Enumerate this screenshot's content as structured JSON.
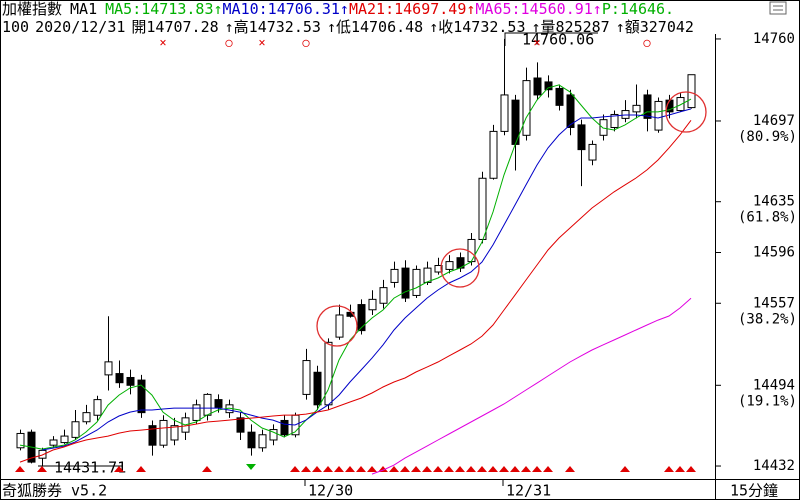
{
  "header": {
    "title": "加權指數",
    "mode": "MA1",
    "extra": {
      "text": "P:14646.",
      "color": "#00b000"
    },
    "info": [
      "100",
      "2020/12/31",
      "開14707.28",
      "↑高14732.53",
      "↑低14706.48",
      "↑收14732.53",
      "↑量825287",
      "↑額327042"
    ]
  },
  "footer": {
    "brand": "奇狐勝券 v5.2",
    "period": "15分鐘"
  },
  "chart_data": {
    "type": "candlestick",
    "categories": [
      null,
      null,
      null,
      null,
      null,
      null,
      null,
      null,
      null,
      null,
      null,
      null,
      null,
      null,
      null,
      null,
      null,
      null,
      null,
      null,
      null,
      null,
      null,
      null,
      null,
      null,
      "12/30",
      null,
      null,
      null,
      null,
      null,
      null,
      null,
      null,
      null,
      null,
      null,
      null,
      null,
      null,
      null,
      null,
      null,
      "12/31",
      null,
      null,
      null,
      null,
      null,
      null,
      null,
      null,
      null,
      null,
      null,
      null,
      null,
      null,
      null,
      null,
      null
    ],
    "open": [
      14446,
      14458,
      14438,
      14448,
      14450,
      14454,
      14466,
      14471,
      14502,
      14503,
      14500,
      14498,
      14463,
      14448,
      14452,
      14458,
      14467,
      14471,
      14483,
      14473,
      14469,
      14458,
      14446,
      14452,
      14467,
      14456,
      14487,
      14504,
      14479,
      14531,
      14550,
      14556,
      14552,
      14557,
      14573,
      14584,
      14563,
      14573,
      14581,
      14583,
      14592,
      14589,
      14606,
      14653,
      14689,
      14713,
      14686,
      14730,
      14727,
      14722,
      14717,
      14694,
      14667,
      14686,
      14692,
      14699,
      14704,
      14717,
      14690,
      14713,
      14705,
      14707.28
    ],
    "high": [
      14460,
      14460,
      14446,
      14455,
      14460,
      14475,
      14479,
      14486,
      14547,
      14513,
      14506,
      14502,
      14467,
      14471,
      14469,
      14473,
      14483,
      14488,
      14487,
      14483,
      14473,
      14464,
      14460,
      14464,
      14471,
      14473,
      14522,
      14509,
      14530,
      14556,
      14556,
      14560,
      14567,
      14575,
      14589,
      14590,
      14586,
      14589,
      14592,
      14594,
      14596,
      14611,
      14658,
      14694,
      14760.06,
      14717,
      14738,
      14742,
      14732,
      14725,
      14721,
      14698,
      14682,
      14702,
      14705,
      14713,
      14725,
      14721,
      14715,
      14717,
      14719,
      14732.53
    ],
    "low": [
      14444,
      14434,
      14431.71,
      14446,
      14449,
      14452,
      14464,
      14467,
      14490,
      14492,
      14487,
      14469,
      14440,
      14446,
      14448,
      14452,
      14464,
      14467,
      14473,
      14469,
      14452,
      14440,
      14443,
      14448,
      14454,
      14454,
      14483,
      14475,
      14475,
      14529,
      14546,
      14533,
      14548,
      14553,
      14569,
      14558,
      14561,
      14571,
      14579,
      14580,
      14581,
      14586,
      14603,
      14652,
      14686,
      14659,
      14682,
      14713,
      14715,
      14705,
      14686,
      14647,
      14663,
      14682,
      14689,
      14696,
      14699,
      14689,
      14688,
      14699,
      14704,
      14706.48
    ],
    "close": [
      14457,
      14435,
      14444,
      14452,
      14455,
      14466,
      14473,
      14483,
      14512,
      14496,
      14494,
      14473,
      14448,
      14467,
      14463,
      14469,
      14479,
      14487,
      14477,
      14479,
      14458,
      14446,
      14456,
      14460,
      14456,
      14471,
      14513,
      14479,
      14527,
      14548,
      14547,
      14536,
      14560,
      14569,
      14583,
      14561,
      14583,
      14584,
      14586,
      14589,
      14584,
      14606,
      14653,
      14689,
      14717,
      14679,
      14728,
      14717,
      14721,
      14709,
      14692,
      14675,
      14679,
      14698,
      14702,
      14705,
      14709,
      14699,
      14712,
      14704,
      14715,
      14732.53
    ],
    "up_color": "#ffffff",
    "down_color": "#000000",
    "series": [
      {
        "name": "MA5",
        "legend_text": ":14713.83↑",
        "color": "#00b000",
        "values": [
          14448.1,
          14446.6,
          14445.0,
          14446.6,
          14448.1,
          14452.0,
          14458.1,
          14465.8,
          14478.8,
          14486.5,
          14491.9,
          14494.2,
          14486.5,
          14473.4,
          14467.3,
          14463.5,
          14465.8,
          14471.1,
          14475.0,
          14476.5,
          14475.0,
          14467.3,
          14461.2,
          14458.1,
          14454.3,
          14458.1,
          14467.3,
          14475.0,
          14490.4,
          14513.4,
          14528.8,
          14538.0,
          14545.7,
          14551.8,
          14561.0,
          14565.7,
          14568.7,
          14573.3,
          14576.4,
          14581.0,
          14584.1,
          14588.7,
          14604.0,
          14627.1,
          14655.6,
          14678.6,
          14699.3,
          14713.1,
          14722.4,
          14724.7,
          14719.3,
          14709.3,
          14699.3,
          14691.6,
          14690.1,
          14694.0,
          14699.3,
          14704.0,
          14704.0,
          14705.5,
          14709.3,
          14713.83
        ]
      },
      {
        "name": "MA10",
        "legend_text": ":14706.31↑",
        "color": "#0000c8",
        "values": [
          null,
          null,
          14444.3,
          14445.8,
          14447.3,
          14450.4,
          14455.0,
          14459.6,
          14465.8,
          14470.4,
          14473.4,
          14475.0,
          14475.0,
          14475.8,
          14476.5,
          14476.5,
          14476.5,
          14476.5,
          14476.5,
          14475.0,
          14473.4,
          14471.1,
          14468.8,
          14467.3,
          14464.2,
          14463.5,
          14467.3,
          14473.4,
          14478.8,
          14486.5,
          14496.5,
          14505.7,
          14514.9,
          14525.0,
          14536.5,
          14545.7,
          14553.4,
          14561.0,
          14567.2,
          14572.6,
          14576.4,
          14581.0,
          14588.7,
          14601.8,
          14617.1,
          14632.5,
          14647.9,
          14663.2,
          14676.3,
          14686.3,
          14694.0,
          14699.3,
          14699.3,
          14700.1,
          14700.8,
          14701.6,
          14701.6,
          14700.8,
          14699.3,
          14701.6,
          14704.0,
          14706.31
        ]
      },
      {
        "name": "MA21",
        "legend_text": ":14697.49↑",
        "color": "#e00000",
        "values": [
          14435.0,
          14438.1,
          14440.4,
          14444.3,
          14446.6,
          14449.6,
          14452.0,
          14453.5,
          14455.0,
          14457.3,
          14458.9,
          14459.6,
          14460.4,
          14461.2,
          14461.9,
          14462.7,
          14464.2,
          14465.8,
          14466.5,
          14467.3,
          14468.1,
          14468.8,
          14469.6,
          14470.4,
          14471.1,
          14471.1,
          14471.9,
          14473.4,
          14475.0,
          14478.1,
          14481.2,
          14484.2,
          14488.1,
          14492.7,
          14496.5,
          14499.6,
          14504.2,
          14508.0,
          14511.9,
          14516.6,
          14521.1,
          14525.7,
          14531.8,
          14540.3,
          14551.8,
          14563.3,
          14574.9,
          14586.4,
          14597.9,
          14607.1,
          14614.8,
          14622.5,
          14630.2,
          14636.3,
          14642.5,
          14647.9,
          14653.2,
          14659.4,
          14667.0,
          14676.3,
          14686.3,
          14697.49
        ]
      },
      {
        "name": "MA65",
        "legend_text": ":14560.91↑",
        "color": "#e000e0",
        "values": [
          null,
          null,
          null,
          null,
          null,
          null,
          null,
          null,
          null,
          null,
          null,
          null,
          null,
          null,
          null,
          null,
          null,
          null,
          null,
          null,
          null,
          null,
          null,
          null,
          null,
          null,
          null,
          null,
          null,
          null,
          null,
          null,
          14425.8,
          14428.9,
          14432.7,
          14438.1,
          14442.7,
          14447.3,
          14452.0,
          14456.6,
          14461.2,
          14465.8,
          14470.4,
          14475.0,
          14479.6,
          14485.0,
          14490.4,
          14495.7,
          14501.1,
          14506.5,
          14511.9,
          14516.6,
          14521.1,
          14525.0,
          14528.8,
          14532.6,
          14536.5,
          14540.3,
          14544.1,
          14547.2,
          14553.4,
          14560.91
        ]
      }
    ],
    "top_markers": [
      null,
      null,
      null,
      null,
      null,
      null,
      null,
      null,
      null,
      null,
      null,
      null,
      null,
      "×",
      null,
      null,
      null,
      null,
      null,
      "○",
      null,
      null,
      "×",
      null,
      null,
      null,
      "○",
      null,
      null,
      null,
      null,
      null,
      null,
      null,
      null,
      null,
      null,
      null,
      null,
      null,
      null,
      null,
      null,
      null,
      null,
      null,
      null,
      "×",
      null,
      null,
      null,
      null,
      null,
      null,
      null,
      null,
      null,
      "○",
      null,
      null,
      null,
      null
    ],
    "signals": [
      1,
      null,
      1,
      null,
      null,
      null,
      null,
      null,
      null,
      1,
      null,
      1,
      null,
      null,
      null,
      null,
      null,
      1,
      null,
      null,
      null,
      -1,
      null,
      null,
      null,
      1,
      1,
      1,
      1,
      1,
      1,
      1,
      1,
      1,
      1,
      1,
      1,
      1,
      1,
      1,
      1,
      1,
      1,
      1,
      1,
      1,
      1,
      1,
      1,
      null,
      1,
      null,
      null,
      null,
      null,
      1,
      null,
      null,
      null,
      1,
      1,
      1
    ],
    "high_annotation": "14760.06",
    "low_annotation": "14431.71",
    "ylim": [
      14422.8,
      14763.8
    ],
    "yticks": [
      14760,
      14697,
      14635,
      14596,
      14557,
      14494,
      14432
    ],
    "fib_levels": [
      {
        "value": 14697,
        "label": "(80.9%)"
      },
      {
        "value": 14635,
        "label": "(61.8%)"
      },
      {
        "value": 14557,
        "label": "(38.2%)"
      },
      {
        "value": 14494,
        "label": "(19.1%)"
      }
    ]
  }
}
